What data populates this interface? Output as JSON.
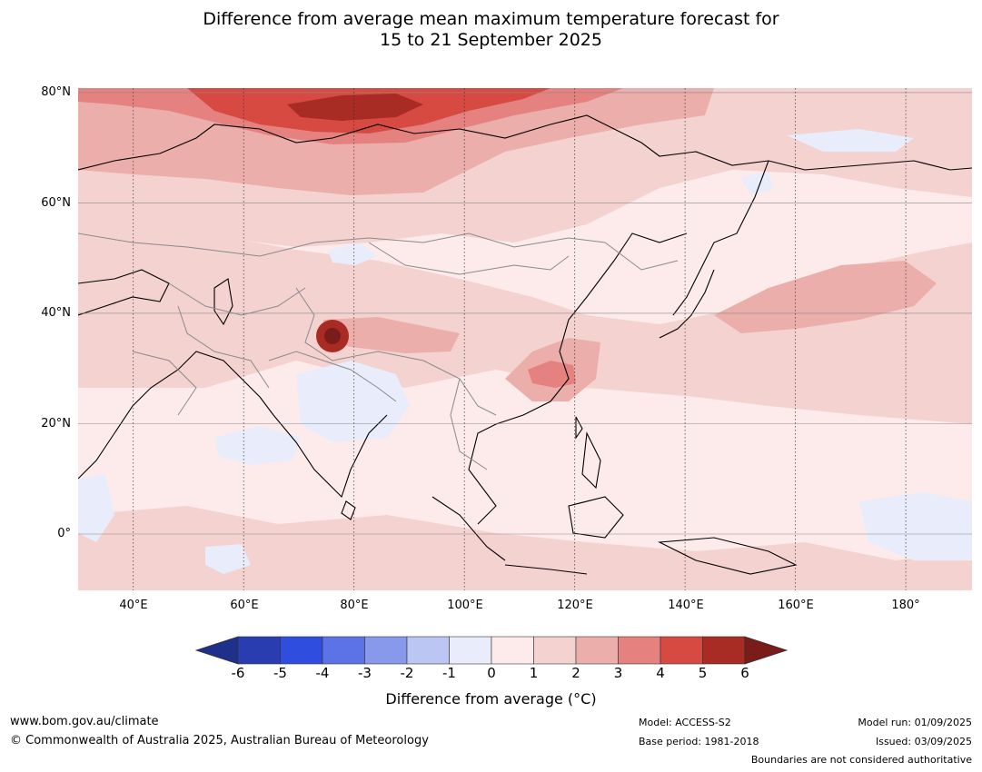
{
  "title_line1": "Difference from average mean maximum temperature forecast for",
  "title_line2": "15 to 21 September 2025",
  "lat_ticks": [
    "80°N",
    "60°N",
    "40°N",
    "20°N",
    "0°"
  ],
  "lon_ticks": [
    "40°E",
    "60°E",
    "80°E",
    "100°E",
    "120°E",
    "140°E",
    "160°E",
    "180°"
  ],
  "map_extent": {
    "lon": [
      30,
      192
    ],
    "lat": [
      -10,
      81
    ]
  },
  "colorbar": {
    "ticks": [
      "-6",
      "-5",
      "-4",
      "-3",
      "-2",
      "-1",
      "0",
      "1",
      "2",
      "3",
      "4",
      "5",
      "6"
    ],
    "colors": [
      "#1f2f8c",
      "#2a3db0",
      "#2f4ee0",
      "#5b73e6",
      "#8898ea",
      "#bcc6f3",
      "#e8ecfb",
      "#fcebea",
      "#f4d2cf",
      "#ebaeaa",
      "#e58280",
      "#d64a42",
      "#a82b24",
      "#7a1c1a"
    ],
    "label": "Difference from average (°C)"
  },
  "footer": {
    "website": "www.bom.gov.au/climate",
    "copyright": "© Commonwealth of Australia 2025, Australian Bureau of Meteorology",
    "model": "Model: ACCESS-S2",
    "base_period": "Base period: 1981-2018",
    "model_run": "Model run: 01/09/2025",
    "issued": "Issued: 03/09/2025",
    "disclaimer": "Boundaries are not considered authoritative"
  }
}
